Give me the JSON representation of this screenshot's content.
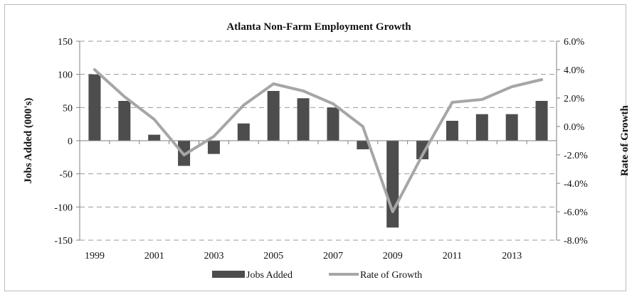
{
  "chart_data": {
    "type": "bar",
    "title": "Atlanta Non-Farm Employment Growth",
    "x": [
      1999,
      2000,
      2001,
      2002,
      2003,
      2004,
      2005,
      2006,
      2007,
      2008,
      2009,
      2010,
      2011,
      2012,
      2013,
      2014
    ],
    "x_tick_labels": [
      "1999",
      "2001",
      "2003",
      "2005",
      "2007",
      "2009",
      "2011",
      "2013"
    ],
    "x_tick_values": [
      1999,
      2001,
      2003,
      2005,
      2007,
      2009,
      2011,
      2013
    ],
    "ylabel": "Jobs Added (000's)",
    "ylim": [
      -150,
      150
    ],
    "y_ticks": [
      150,
      100,
      50,
      0,
      -50,
      -100,
      -150
    ],
    "y_tick_labels": [
      "150",
      "100",
      "50",
      "0",
      "-50",
      "-100",
      "-150"
    ],
    "y2label": "Rate of Growth",
    "y2lim": [
      -8.0,
      6.0
    ],
    "y2_ticks": [
      6,
      4,
      2,
      0,
      -2,
      -4,
      -6,
      -8
    ],
    "y2_tick_labels": [
      "6.0%",
      "4.0%",
      "2.0%",
      "0.0%",
      "-2.0%",
      "-4.0%",
      "-6.0%",
      "-8.0%"
    ],
    "series": [
      {
        "name": "Jobs Added",
        "type": "bar",
        "axis": "left",
        "color": "#4d4d4d",
        "values": [
          100,
          60,
          9,
          -38,
          -20,
          26,
          75,
          64,
          50,
          -13,
          -131,
          -28,
          30,
          40,
          40,
          60
        ]
      },
      {
        "name": "Rate of Growth",
        "type": "line",
        "axis": "right",
        "color": "#a6a6a6",
        "values": [
          4.0,
          2.1,
          0.5,
          -2.0,
          -0.7,
          1.5,
          3.0,
          2.5,
          1.6,
          0.0,
          -6.0,
          -2.0,
          1.7,
          1.9,
          2.8,
          3.3
        ]
      }
    ],
    "grid": "horizontal-dashed",
    "legend": "bottom"
  }
}
